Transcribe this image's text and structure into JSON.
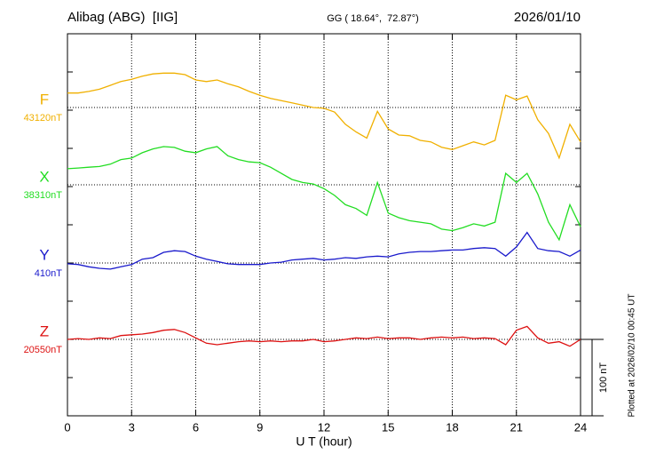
{
  "chart_data": {
    "type": "line",
    "title": "Alibag (ABG)  [IIG]",
    "subtitle": "GG ( 18.64°,  72.87°)",
    "date": "2026/01/10",
    "note": "Plotted at 2026/02/10 00:45 UT",
    "xlabel": "U T (hour)",
    "xlim": [
      0,
      24
    ],
    "xticks": [
      0,
      3,
      6,
      9,
      12,
      15,
      18,
      21,
      24
    ],
    "grid": true,
    "scale_bar": {
      "value": 100,
      "label": "100 nT"
    },
    "x": [
      0,
      0.5,
      1,
      1.5,
      2,
      2.5,
      3,
      3.5,
      4,
      4.5,
      5,
      5.5,
      6,
      6.5,
      7,
      7.5,
      8,
      8.5,
      9,
      9.5,
      10,
      10.5,
      11,
      11.5,
      12,
      12.5,
      13,
      13.5,
      14,
      14.5,
      15,
      15.5,
      16,
      16.5,
      17,
      17.5,
      18,
      18.5,
      19,
      19.5,
      20,
      20.5,
      21,
      21.5,
      22,
      22.5,
      23,
      23.5,
      24
    ],
    "series": [
      {
        "name": "F",
        "color": "#f0b000",
        "baseline": {
          "value": 43120,
          "label": "43120nT"
        },
        "values": [
          43139,
          43139,
          43141,
          43144,
          43149,
          43154,
          43157,
          43161,
          43164,
          43165,
          43165,
          43163,
          43156,
          43154,
          43156,
          43151,
          43147,
          43141,
          43136,
          43132,
          43129,
          43126,
          43123,
          43120,
          43119,
          43114,
          43098,
          43088,
          43080,
          43115,
          43092,
          43084,
          43083,
          43077,
          43075,
          43068,
          43065,
          43070,
          43075,
          43071,
          43077,
          43136,
          43130,
          43135,
          43104,
          43086,
          43054,
          43098,
          43075
        ]
      },
      {
        "name": "X",
        "color": "#22dd22",
        "baseline": {
          "value": 38310,
          "label": "38310nT"
        },
        "values": [
          38331,
          38332,
          38333,
          38334,
          38337,
          38343,
          38345,
          38352,
          38357,
          38360,
          38359,
          38354,
          38352,
          38357,
          38360,
          38348,
          38343,
          38340,
          38339,
          38333,
          38325,
          38317,
          38313,
          38311,
          38305,
          38296,
          38284,
          38279,
          38270,
          38313,
          38273,
          38267,
          38263,
          38261,
          38259,
          38252,
          38250,
          38254,
          38259,
          38256,
          38261,
          38325,
          38313,
          38325,
          38298,
          38261,
          38238,
          38284,
          38255
        ]
      },
      {
        "name": "Y",
        "color": "#1a1acc",
        "baseline": {
          "value": 410,
          "label": "410nT"
        },
        "values": [
          409,
          408,
          405,
          403,
          402,
          405,
          408,
          415,
          417,
          424,
          426,
          425,
          419,
          415,
          412,
          409,
          408,
          408,
          408,
          410,
          411,
          414,
          415,
          416,
          414,
          415,
          417,
          416,
          418,
          419,
          418,
          422,
          424,
          425,
          425,
          426,
          427,
          427,
          429,
          430,
          429,
          419,
          431,
          450,
          429,
          426,
          425,
          419,
          427
        ]
      },
      {
        "name": "Z",
        "color": "#dd1111",
        "baseline": {
          "value": 20550,
          "label": "20550nT"
        },
        "values": [
          20550,
          20551,
          20550,
          20552,
          20551,
          20555,
          20556,
          20557,
          20559,
          20562,
          20563,
          20559,
          20552,
          20545,
          20543,
          20545,
          20547,
          20548,
          20547,
          20548,
          20547,
          20548,
          20548,
          20550,
          20547,
          20548,
          20550,
          20552,
          20551,
          20553,
          20551,
          20552,
          20552,
          20550,
          20552,
          20553,
          20552,
          20553,
          20551,
          20552,
          20551,
          20543,
          20562,
          20567,
          20552,
          20545,
          20547,
          20541,
          20550
        ]
      }
    ]
  }
}
